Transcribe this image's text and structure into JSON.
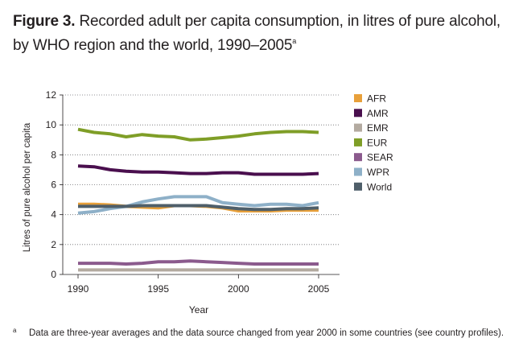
{
  "figure": {
    "label": "Figure 3.",
    "title_line1": "Recorded adult per capita consumption, in litres of pure alcohol,",
    "title_line2": "by WHO region and the world, 1990–2005",
    "title_sup": "a"
  },
  "footnote": {
    "marker": "a",
    "text": "Data are three-year averages and the data source changed from year 2000 in some countries (see country profiles)."
  },
  "chart_data": {
    "type": "line",
    "title": "",
    "xlabel": "Year",
    "ylabel": "Litres of pure alcohol per capita",
    "xlim": [
      1990,
      2005
    ],
    "ylim": [
      0,
      12
    ],
    "x_ticks": [
      1990,
      1995,
      2000,
      2005
    ],
    "y_ticks": [
      0,
      2,
      4,
      6,
      8,
      10,
      12
    ],
    "grid": "horizontal dotted",
    "legend_position": "right",
    "x": [
      1990,
      1991,
      1992,
      1993,
      1994,
      1995,
      1996,
      1997,
      1998,
      1999,
      2000,
      2001,
      2002,
      2003,
      2004,
      2005
    ],
    "series": [
      {
        "name": "AFR",
        "color": "#e8a03a",
        "values": [
          4.7,
          4.7,
          4.65,
          4.55,
          4.5,
          4.45,
          4.6,
          4.6,
          4.55,
          4.45,
          4.25,
          4.25,
          4.25,
          4.3,
          4.3,
          4.3
        ]
      },
      {
        "name": "AMR",
        "color": "#4a0f4e",
        "values": [
          7.25,
          7.2,
          7.0,
          6.9,
          6.85,
          6.85,
          6.8,
          6.75,
          6.75,
          6.8,
          6.8,
          6.7,
          6.7,
          6.7,
          6.7,
          6.75
        ]
      },
      {
        "name": "EMR",
        "color": "#b3aaa0",
        "values": [
          0.3,
          0.3,
          0.3,
          0.3,
          0.3,
          0.3,
          0.3,
          0.3,
          0.3,
          0.3,
          0.3,
          0.3,
          0.3,
          0.3,
          0.3,
          0.3
        ]
      },
      {
        "name": "EUR",
        "color": "#7f9e27",
        "values": [
          9.7,
          9.5,
          9.4,
          9.2,
          9.35,
          9.25,
          9.2,
          9.0,
          9.05,
          9.15,
          9.25,
          9.4,
          9.5,
          9.55,
          9.55,
          9.5
        ]
      },
      {
        "name": "SEAR",
        "color": "#8b5a8d",
        "values": [
          0.75,
          0.75,
          0.75,
          0.7,
          0.75,
          0.85,
          0.85,
          0.9,
          0.85,
          0.8,
          0.75,
          0.7,
          0.7,
          0.7,
          0.7,
          0.7
        ]
      },
      {
        "name": "WPR",
        "color": "#8eb0c8",
        "values": [
          4.1,
          4.2,
          4.4,
          4.55,
          4.85,
          5.05,
          5.2,
          5.2,
          5.2,
          4.8,
          4.7,
          4.6,
          4.7,
          4.7,
          4.6,
          4.8
        ]
      },
      {
        "name": "World",
        "color": "#4f5f6a",
        "values": [
          4.55,
          4.55,
          4.55,
          4.55,
          4.6,
          4.6,
          4.6,
          4.6,
          4.6,
          4.5,
          4.4,
          4.35,
          4.35,
          4.4,
          4.4,
          4.45
        ]
      }
    ]
  }
}
